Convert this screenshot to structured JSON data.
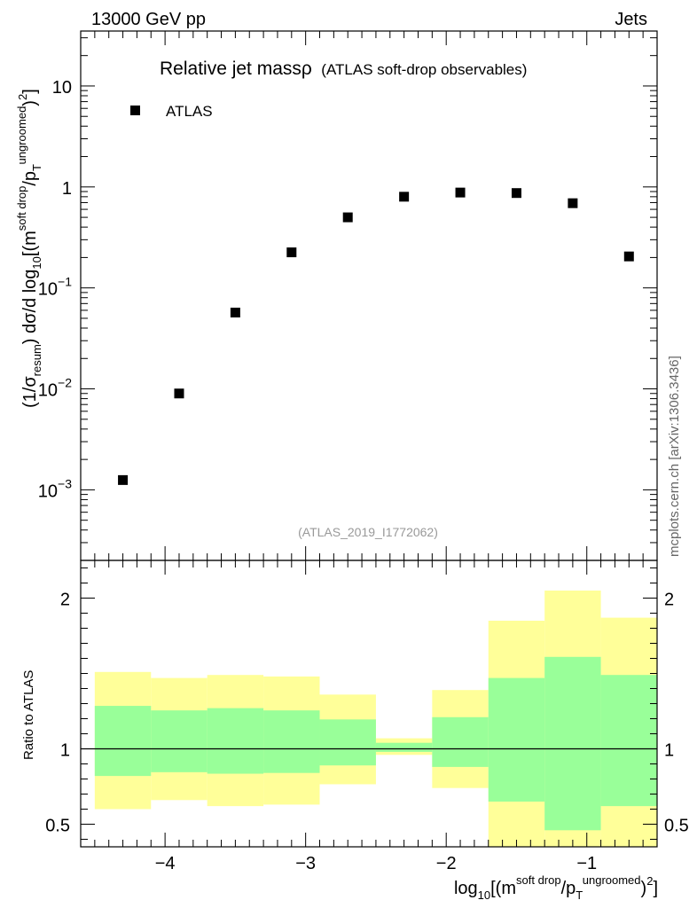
{
  "header": {
    "left": "13000 GeV pp",
    "right": "Jets"
  },
  "side_label": "mcplots.cern.ch [arXiv:1306.3436]",
  "chart_data": {
    "type": "scatter",
    "title_main": "Relative jet massρ",
    "title_sub": "(ATLAS soft-drop observables)",
    "watermark": "(ATLAS_2019_I1772062)",
    "legend": {
      "label": "ATLAS",
      "position": "top-left"
    },
    "x_range": [
      -4.6,
      -0.5
    ],
    "x_ticks": [
      -4,
      -3,
      -2,
      -1
    ],
    "x_tick_labels": [
      "−4",
      "−3",
      "−2",
      "−1"
    ],
    "xlabel": {
      "pre": "log",
      "sub10": "10",
      "b1": "[(m",
      "sup1": "soft drop",
      "mid": "/p",
      "subT": "T",
      "sup2": "ungroomed",
      "post": ")",
      "sup3": "2",
      "end": "]"
    },
    "main": {
      "scale": "log",
      "y_range": [
        0.0002,
        35
      ],
      "ylabel": {
        "a": "(1/σ",
        "sub": "resum",
        "b": ") dσ/d log",
        "sub10": "10",
        "c": "[(m",
        "sup1": "soft drop",
        "d": "/p",
        "subT": "T",
        "sup2": "ungroomed",
        "e": ")",
        "sup3": "2",
        "f": "]"
      },
      "y_tick_labels": [
        {
          "value": 0.001,
          "base": "10",
          "exp": "−3"
        },
        {
          "value": 0.01,
          "base": "10",
          "exp": "−2"
        },
        {
          "value": 0.1,
          "base": "10",
          "exp": "−1"
        },
        {
          "value": 1,
          "text": "1"
        },
        {
          "value": 10,
          "text": "10"
        }
      ],
      "series": [
        {
          "name": "ATLAS",
          "x": [
            -4.3,
            -3.9,
            -3.5,
            -3.1,
            -2.7,
            -2.3,
            -1.9,
            -1.5,
            -1.1,
            -0.7
          ],
          "y": [
            0.00125,
            0.009,
            0.057,
            0.225,
            0.5,
            0.8,
            0.88,
            0.87,
            0.69,
            0.205
          ]
        }
      ]
    },
    "ratio": {
      "ylabel": "Ratio to ATLAS",
      "y_range": [
        0.35,
        2.25
      ],
      "y_ticks": [
        0.5,
        1,
        2
      ],
      "y_tick_labels": [
        "0.5",
        "1",
        "2"
      ],
      "reference_line": 1,
      "bin_edges": [
        -4.5,
        -4.1,
        -3.7,
        -3.3,
        -2.9,
        -2.5,
        -2.1,
        -1.7,
        -1.3,
        -0.9,
        -0.5
      ],
      "band_inner": {
        "color": "#99ff99",
        "low": [
          0.82,
          0.845,
          0.835,
          0.84,
          0.89,
          0.98,
          0.88,
          0.65,
          0.46,
          0.62
        ],
        "high": [
          1.285,
          1.255,
          1.27,
          1.255,
          1.195,
          1.04,
          1.21,
          1.47,
          1.61,
          1.49
        ]
      },
      "band_outer": {
        "color": "#ffff99",
        "low": [
          0.6,
          0.66,
          0.62,
          0.63,
          0.765,
          0.96,
          0.74,
          0.35,
          0.35,
          0.35
        ],
        "high": [
          1.51,
          1.47,
          1.49,
          1.48,
          1.36,
          1.07,
          1.39,
          1.85,
          2.05,
          1.87
        ]
      }
    }
  }
}
